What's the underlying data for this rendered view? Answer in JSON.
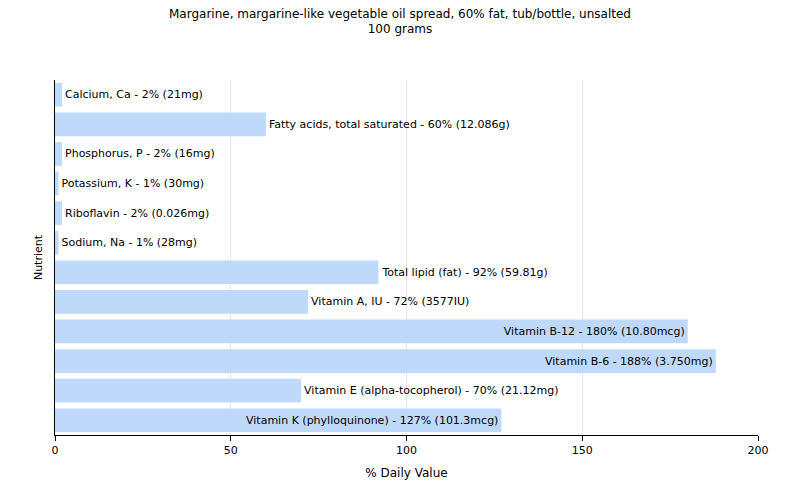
{
  "chart_data": {
    "type": "bar",
    "orientation": "horizontal",
    "title": "Margarine, margarine-like vegetable oil spread, 60% fat, tub/bottle, unsalted",
    "subtitle": "100 grams",
    "xlabel": "% Daily Value",
    "ylabel": "Nutrient",
    "categories": [
      null,
      null,
      null,
      null,
      null,
      null,
      null,
      null,
      null,
      null,
      null,
      null
    ],
    "values": [
      2,
      60,
      2,
      1,
      2,
      1,
      92,
      72,
      180,
      188,
      70,
      127
    ],
    "value_labels": [
      "Calcium, Ca - 2% (21mg)",
      "Fatty acids, total saturated - 60% (12.086g)",
      "Phosphorus, P - 2% (16mg)",
      "Potassium, K - 1% (30mg)",
      "Riboflavin - 2% (0.026mg)",
      "Sodium, Na - 1% (28mg)",
      "Total lipid (fat) - 92% (59.81g)",
      "Vitamin A, IU - 72% (3577IU)",
      "Vitamin B-12 - 180% (10.80mcg)",
      "Vitamin B-6 - 188% (3.750mg)",
      "Vitamin E (alpha-tocopherol) - 70% (21.12mg)",
      "Vitamin K (phylloquinone) - 127% (101.3mcg)"
    ],
    "color": "#bfd9fb",
    "xlim": [
      0,
      200
    ],
    "xticks": [
      0,
      50,
      100,
      150,
      200
    ],
    "grid": true,
    "data_labels": true,
    "tick_labels": "x"
  }
}
